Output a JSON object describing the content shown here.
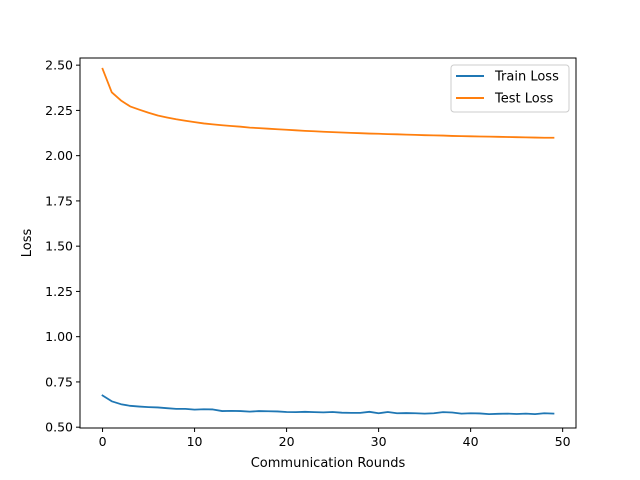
{
  "chart_data": {
    "type": "line",
    "xlabel": "Communication Rounds",
    "ylabel": "Loss",
    "xlim": [
      -2.45,
      51.45
    ],
    "ylim": [
      0.4955,
      2.5395
    ],
    "xticks": [
      "0",
      "10",
      "20",
      "30",
      "40",
      "50"
    ],
    "yticks": [
      "0.50",
      "0.75",
      "1.00",
      "1.25",
      "1.50",
      "1.75",
      "2.00",
      "2.25",
      "2.50"
    ],
    "grid": false,
    "legend_position": "top-right",
    "x": [
      0,
      1,
      2,
      3,
      4,
      5,
      6,
      7,
      8,
      9,
      10,
      11,
      12,
      13,
      14,
      15,
      16,
      17,
      18,
      19,
      20,
      21,
      22,
      23,
      24,
      25,
      26,
      27,
      28,
      29,
      30,
      31,
      32,
      33,
      34,
      35,
      36,
      37,
      38,
      39,
      40,
      41,
      42,
      43,
      44,
      45,
      46,
      47,
      48,
      49
    ],
    "series": [
      {
        "name": "Train Loss",
        "color": "#1f77b4",
        "values": [
          0.675,
          0.643,
          0.627,
          0.618,
          0.614,
          0.611,
          0.609,
          0.605,
          0.601,
          0.601,
          0.597,
          0.599,
          0.598,
          0.589,
          0.59,
          0.589,
          0.586,
          0.589,
          0.588,
          0.587,
          0.584,
          0.583,
          0.585,
          0.583,
          0.582,
          0.584,
          0.58,
          0.579,
          0.579,
          0.585,
          0.577,
          0.584,
          0.577,
          0.578,
          0.577,
          0.575,
          0.577,
          0.583,
          0.581,
          0.575,
          0.577,
          0.576,
          0.572,
          0.574,
          0.575,
          0.573,
          0.575,
          0.572,
          0.577,
          0.575
        ]
      },
      {
        "name": "Test Loss",
        "color": "#ff7f0e",
        "values": [
          2.48,
          2.35,
          2.305,
          2.272,
          2.254,
          2.237,
          2.222,
          2.211,
          2.201,
          2.193,
          2.185,
          2.178,
          2.173,
          2.168,
          2.164,
          2.16,
          2.155,
          2.152,
          2.149,
          2.146,
          2.143,
          2.14,
          2.137,
          2.135,
          2.132,
          2.13,
          2.128,
          2.126,
          2.124,
          2.122,
          2.121,
          2.119,
          2.118,
          2.116,
          2.115,
          2.113,
          2.112,
          2.111,
          2.109,
          2.108,
          2.107,
          2.106,
          2.105,
          2.104,
          2.103,
          2.102,
          2.101,
          2.1,
          2.099,
          2.099
        ]
      }
    ]
  }
}
